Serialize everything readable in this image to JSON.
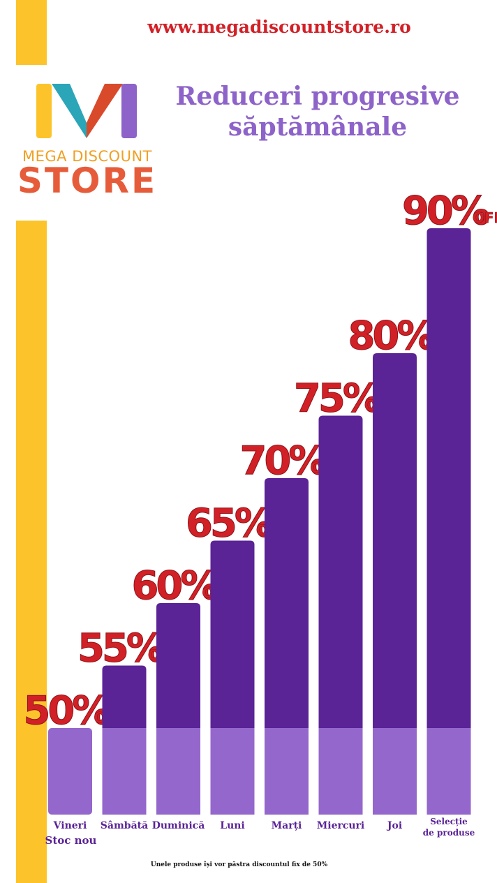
{
  "header": {
    "url": "www.megadiscountstore.ro",
    "title_line1": "Reduceri progresive",
    "title_line2": "săptămânale"
  },
  "logo": {
    "line1": "MEGA DISCOUNT",
    "line2": "STORE"
  },
  "colors": {
    "accent_yellow": "#fcc42a",
    "bar_top": "#5a2396",
    "bar_base": "#9467cc",
    "label_red": "#d22027",
    "title_purple": "#8d63c9"
  },
  "chart_data": {
    "type": "bar",
    "categories": [
      "Vineri",
      "Sâmbătă",
      "Duminică",
      "Luni",
      "Marți",
      "Miercuri",
      "Joi",
      "Selecție de produse"
    ],
    "category_sublabels": [
      "Stoc nou",
      "",
      "",
      "",
      "",
      "",
      "",
      ""
    ],
    "values": [
      50,
      55,
      60,
      65,
      70,
      75,
      80,
      90
    ],
    "value_labels": [
      "50%",
      "55%",
      "60%",
      "65%",
      "70%",
      "75%",
      "80%",
      "90%"
    ],
    "value_suffix": "OFF",
    "ylim": [
      40,
      90
    ]
  },
  "footnote": "Unele produse își vor păstra discountul fix de 50%"
}
